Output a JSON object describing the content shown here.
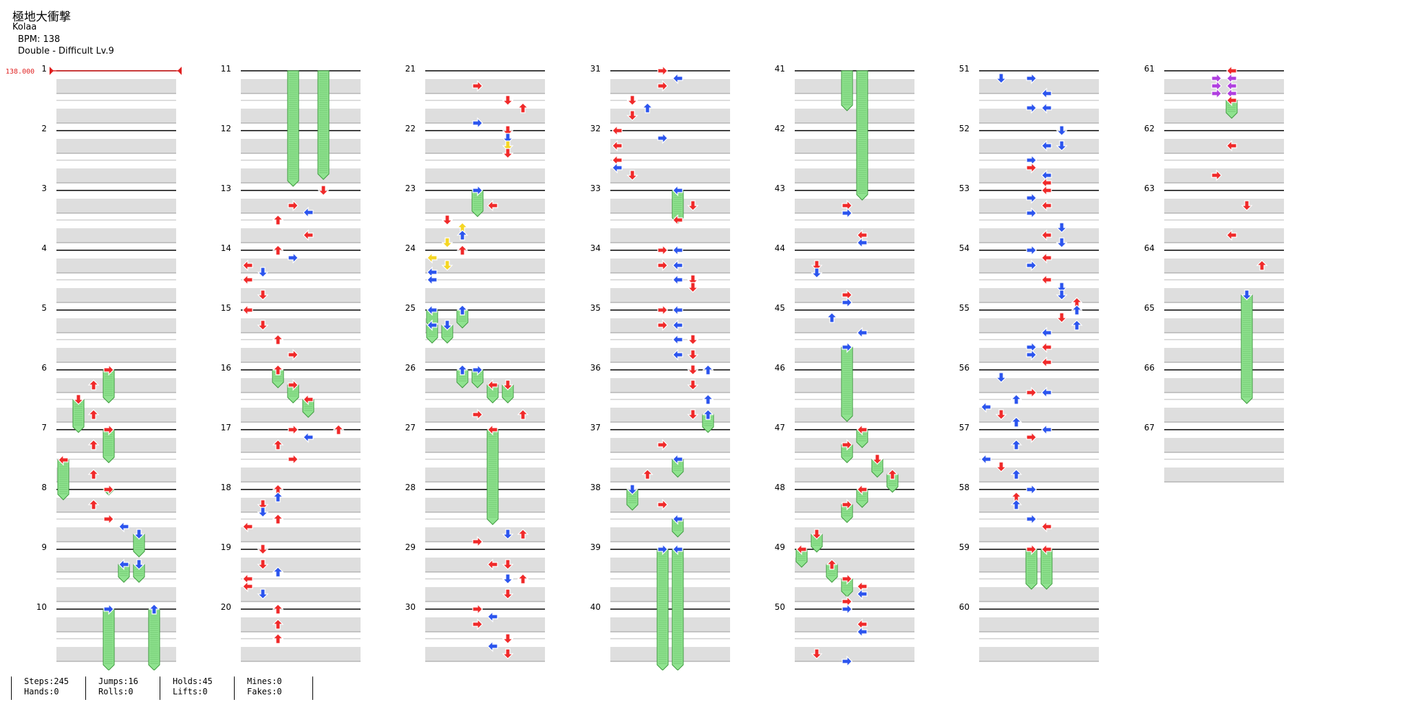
{
  "song": {
    "title": "極地大衝撃",
    "artist": "Kolaa",
    "bpm_label": "BPM:",
    "bpm_value": "138",
    "difficulty": "Double - Difficult Lv.9"
  },
  "bpm_marker": "138.000",
  "measures": [
    "1",
    "2",
    "3",
    "4",
    "5",
    "6",
    "7",
    "8",
    "9",
    "10",
    "11",
    "12",
    "13",
    "14",
    "15",
    "16",
    "17",
    "18",
    "19",
    "20",
    "21",
    "22",
    "23",
    "24",
    "25",
    "26",
    "27",
    "28",
    "29",
    "30",
    "31",
    "32",
    "33",
    "34",
    "35",
    "36",
    "37",
    "38",
    "39",
    "40",
    "41",
    "42",
    "43",
    "44",
    "45",
    "46",
    "47",
    "48",
    "49",
    "50",
    "51",
    "52",
    "53",
    "54",
    "55",
    "56",
    "57",
    "58",
    "59",
    "60",
    "61",
    "62",
    "63",
    "64",
    "65",
    "66",
    "67"
  ],
  "colors": {
    "red": "#f02a2a",
    "blue": "#2c55ee",
    "yellow": "#f5d623",
    "purple": "#b040e0",
    "hold": "#8fe38f",
    "holdEdge": "#3d9a3d",
    "stripe": "#dedede",
    "line": "#000000"
  },
  "icons": [
    "arrow-left-icon",
    "arrow-down-icon",
    "arrow-up-icon",
    "arrow-right-icon",
    "hold-note-icon"
  ],
  "stats": [
    {
      "a": "Steps:245",
      "b": "Hands:0"
    },
    {
      "a": "Jumps:16",
      "b": "Rolls:0"
    },
    {
      "a": "Holds:45",
      "b": "Lifts:0"
    },
    {
      "a": "Mines:0",
      "b": "Fakes:0"
    }
  ]
}
